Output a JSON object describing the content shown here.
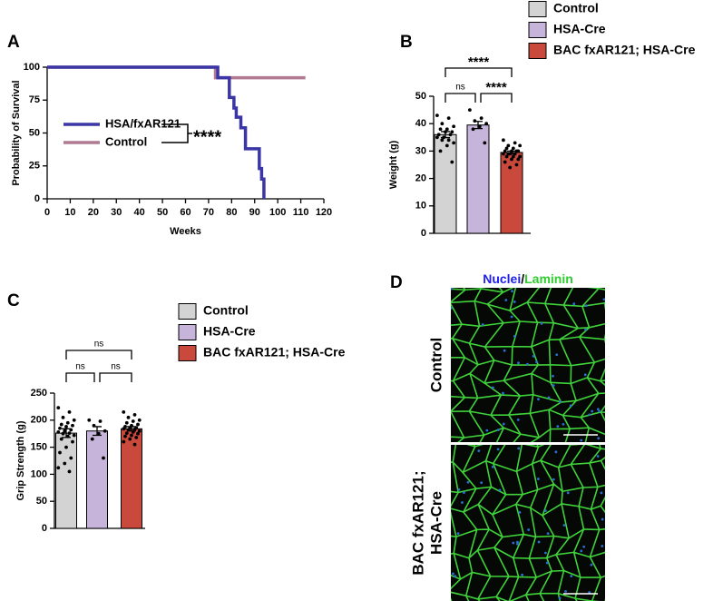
{
  "panel_labels": [
    "A",
    "B",
    "C",
    "D"
  ],
  "chart_data": [
    {
      "type": "line",
      "step": true,
      "x_label": "Weeks",
      "y_label": "Probability of Survival",
      "xlim": [
        0,
        120
      ],
      "xticks": [
        0,
        10,
        20,
        30,
        40,
        50,
        60,
        70,
        80,
        90,
        100,
        110,
        120
      ],
      "ylim": [
        0,
        100
      ],
      "yticks": [
        0,
        25,
        50,
        75,
        100
      ],
      "annotation": "****",
      "series": [
        {
          "name": "HSA/fxAR121",
          "color": "#3b36a6",
          "x": [
            0,
            74,
            79,
            81,
            82,
            84,
            86,
            92,
            93,
            94
          ],
          "values": [
            100,
            92,
            77,
            69,
            62,
            54,
            38,
            23,
            15,
            0
          ]
        },
        {
          "name": "Control",
          "color": "#b07a92",
          "x": [
            0,
            73,
            112
          ],
          "values": [
            100,
            92,
            92
          ]
        }
      ]
    },
    {
      "type": "bar",
      "y_label": "Weight (g)",
      "ylim": [
        0,
        50
      ],
      "yticks": [
        0,
        10,
        20,
        30,
        40,
        50
      ],
      "categories": [
        "Control",
        "HSA-Cre",
        "BAC fxAR121; HSA-Cre"
      ],
      "colors": [
        "#d3d3d3",
        "#c6b4da",
        "#c9493c"
      ],
      "values": [
        36,
        39.5,
        29.5
      ],
      "errors": [
        1.1,
        1.3,
        0.5
      ],
      "points": [
        [
          43,
          42,
          40,
          39,
          38,
          38,
          37,
          37,
          36,
          36,
          35,
          35,
          34,
          34,
          33,
          32,
          30,
          26
        ],
        [
          45,
          42,
          41,
          40,
          39,
          38,
          33
        ],
        [
          34,
          33,
          32,
          32,
          31,
          31,
          30,
          30,
          30,
          30,
          29,
          29,
          29,
          29,
          28,
          28,
          28,
          27,
          27,
          26,
          25,
          24
        ]
      ],
      "comparisons": [
        "****",
        "ns",
        "****"
      ]
    },
    {
      "type": "bar",
      "y_label": "Grip Strength (g)",
      "ylim": [
        0,
        250
      ],
      "yticks": [
        0,
        50,
        100,
        150,
        200,
        250
      ],
      "categories": [
        "Control",
        "HSA-Cre",
        "BAC fxAR121; HSA-Cre"
      ],
      "colors": [
        "#d3d3d3",
        "#c6b4da",
        "#c9493c"
      ],
      "values": [
        176,
        180,
        184
      ],
      "errors": [
        8,
        8,
        4
      ],
      "points": [
        [
          223,
          215,
          205,
          200,
          195,
          192,
          190,
          188,
          185,
          182,
          180,
          178,
          176,
          175,
          172,
          170,
          165,
          160,
          150,
          140,
          130,
          120,
          112,
          105
        ],
        [
          200,
          198,
          190,
          180,
          175,
          165,
          130
        ],
        [
          215,
          210,
          205,
          200,
          198,
          195,
          192,
          190,
          188,
          186,
          185,
          184,
          183,
          182,
          180,
          178,
          176,
          175,
          172,
          170,
          168,
          165,
          160,
          155
        ]
      ],
      "comparisons": [
        "ns",
        "ns",
        "ns"
      ]
    }
  ],
  "image_panel": {
    "stain": [
      "Nuclei",
      "/",
      "Laminin"
    ],
    "rows": [
      [
        "Control"
      ],
      [
        "BAC fxAR121;",
        "HSA-Cre"
      ]
    ]
  }
}
